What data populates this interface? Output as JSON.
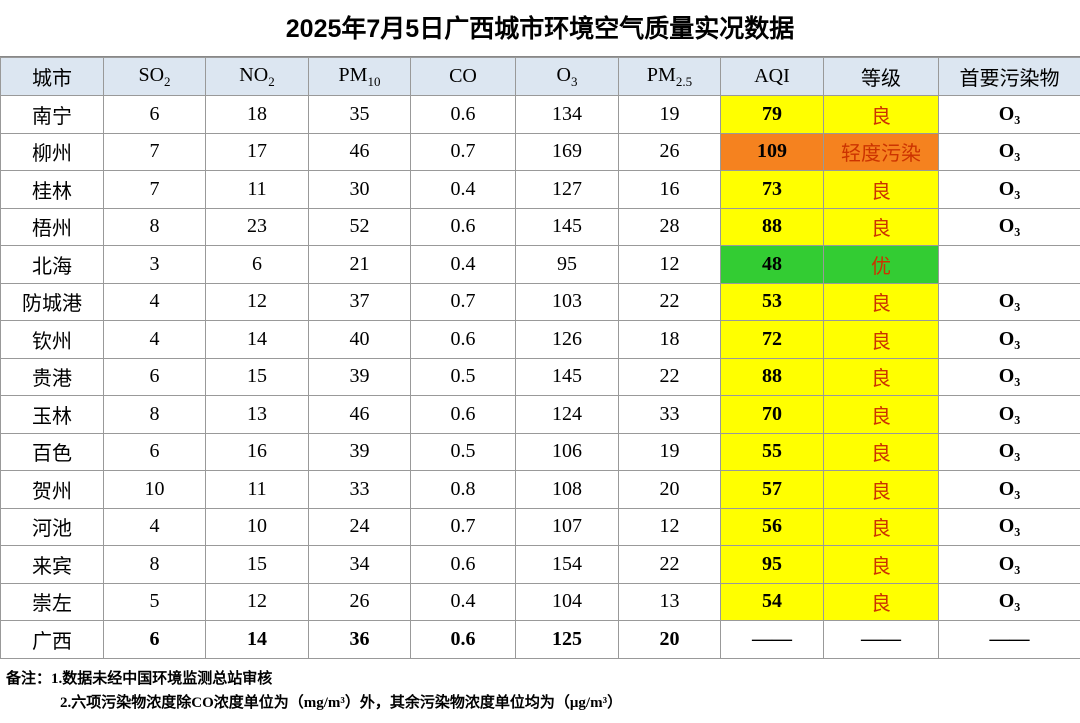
{
  "title": "2025年7月5日广西城市环境空气质量实况数据",
  "table": {
    "header": [
      {
        "text": "城市"
      },
      {
        "text": "SO",
        "sub": "2"
      },
      {
        "text": "NO",
        "sub": "2"
      },
      {
        "text": "PM",
        "sub": "10"
      },
      {
        "text": "CO"
      },
      {
        "text": "O",
        "sub": "3"
      },
      {
        "text": "PM",
        "sub": "2.5"
      },
      {
        "text": "AQI"
      },
      {
        "text": "等级"
      },
      {
        "text": "首要污染物"
      }
    ],
    "rows": [
      {
        "cells": [
          "南宁",
          6,
          18,
          35,
          0.6,
          134,
          19,
          79,
          "良",
          "O₃"
        ],
        "aqi_color": "#ffff00"
      },
      {
        "cells": [
          "柳州",
          7,
          17,
          46,
          0.7,
          169,
          26,
          109,
          "轻度污染",
          "O₃"
        ],
        "aqi_color": "#f5821f"
      },
      {
        "cells": [
          "桂林",
          7,
          11,
          30,
          0.4,
          127,
          16,
          73,
          "良",
          "O₃"
        ],
        "aqi_color": "#ffff00"
      },
      {
        "cells": [
          "梧州",
          8,
          23,
          52,
          0.6,
          145,
          28,
          88,
          "良",
          "O₃"
        ],
        "aqi_color": "#ffff00"
      },
      {
        "cells": [
          "北海",
          3,
          6,
          21,
          0.4,
          95,
          12,
          48,
          "优",
          null
        ],
        "aqi_color": "#33cc33"
      },
      {
        "cells": [
          "防城港",
          4,
          12,
          37,
          0.7,
          103,
          22,
          53,
          "良",
          "O₃"
        ],
        "aqi_color": "#ffff00"
      },
      {
        "cells": [
          "钦州",
          4,
          14,
          40,
          0.6,
          126,
          18,
          72,
          "良",
          "O₃"
        ],
        "aqi_color": "#ffff00"
      },
      {
        "cells": [
          "贵港",
          6,
          15,
          39,
          0.5,
          145,
          22,
          88,
          "良",
          "O₃"
        ],
        "aqi_color": "#ffff00"
      },
      {
        "cells": [
          "玉林",
          8,
          13,
          46,
          0.6,
          124,
          33,
          70,
          "良",
          "O₃"
        ],
        "aqi_color": "#ffff00"
      },
      {
        "cells": [
          "百色",
          6,
          16,
          39,
          0.5,
          106,
          19,
          55,
          "良",
          "O₃"
        ],
        "aqi_color": "#ffff00"
      },
      {
        "cells": [
          "贺州",
          10,
          11,
          33,
          0.8,
          108,
          20,
          57,
          "良",
          "O₃"
        ],
        "aqi_color": "#ffff00"
      },
      {
        "cells": [
          "河池",
          4,
          10,
          24,
          0.7,
          107,
          12,
          56,
          "良",
          "O₃"
        ],
        "aqi_color": "#ffff00"
      },
      {
        "cells": [
          "来宾",
          8,
          15,
          34,
          0.6,
          154,
          22,
          95,
          "良",
          "O₃"
        ],
        "aqi_color": "#ffff00"
      },
      {
        "cells": [
          "崇左",
          5,
          12,
          26,
          0.4,
          104,
          13,
          54,
          "良",
          "O₃"
        ],
        "aqi_color": "#ffff00"
      }
    ],
    "summary": [
      "广西",
      6,
      14,
      36,
      0.6,
      125,
      20,
      "——",
      "——",
      "——"
    ]
  },
  "notes": {
    "label": "备注：",
    "items": [
      "1.数据未经中国环境监测总站审核",
      "2.六项污染物浓度除CO浓度单位为（mg/m³）外，其余污染物浓度单位均为（μg/m³）"
    ]
  }
}
